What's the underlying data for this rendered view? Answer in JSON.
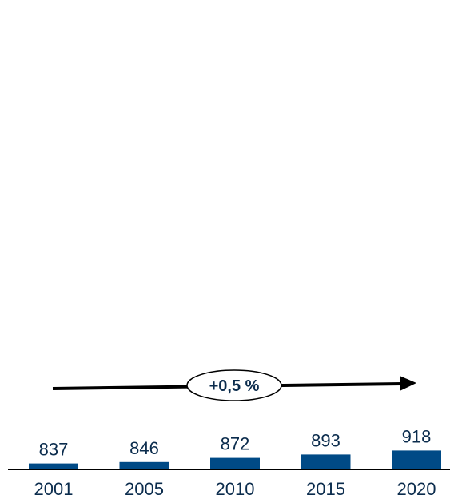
{
  "colors": {
    "bar": "#004a86",
    "text": "#0b2c4d",
    "axis": "#000000",
    "arrow": "#000000"
  },
  "chart_data": {
    "type": "bar",
    "categories": [
      "2001",
      "2005",
      "2010",
      "2015",
      "2020"
    ],
    "values": [
      837,
      846,
      872,
      893,
      918
    ],
    "value_labels": [
      "837",
      "846",
      "872",
      "893",
      "918"
    ],
    "annotation": "+0,5 %",
    "title": "",
    "xlabel": "",
    "ylabel": "",
    "grid": false,
    "legend": "none"
  }
}
